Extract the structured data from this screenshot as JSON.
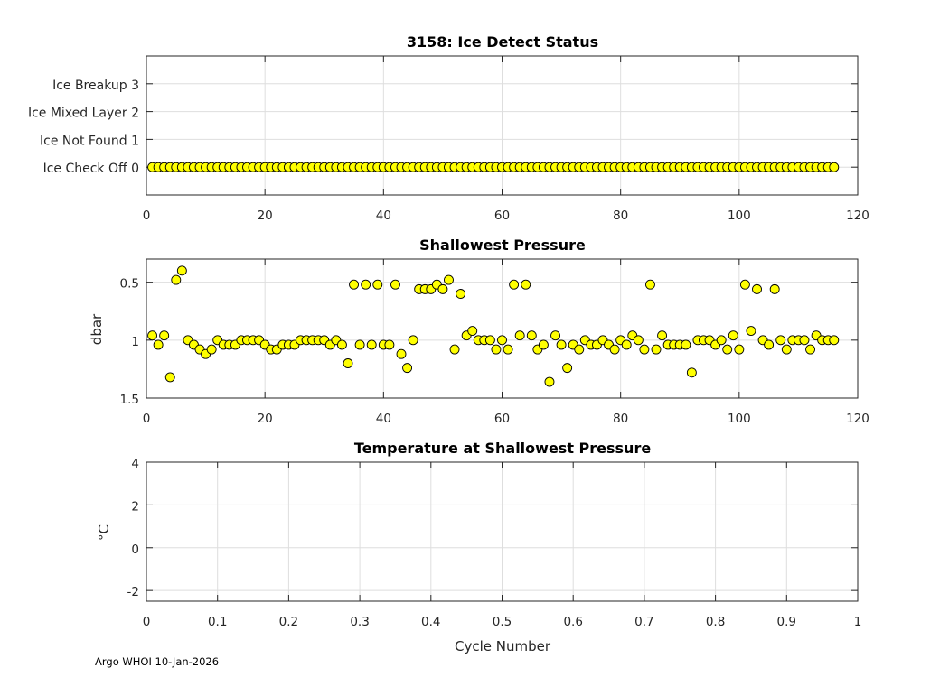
{
  "footer": "Argo WHOI 10-Jan-2026",
  "marker_face_color": "#ffff00",
  "marker_edge_color": "#000000",
  "chart_data": [
    {
      "type": "scatter",
      "title": "3158: Ice Detect Status",
      "xlabel": "",
      "ylabel": "",
      "xlim": [
        0,
        120
      ],
      "ylim": [
        -1,
        4
      ],
      "x_ticks": [
        0,
        20,
        40,
        60,
        80,
        100,
        120
      ],
      "x_tick_labels": [
        "0",
        "20",
        "40",
        "60",
        "80",
        "100",
        "120"
      ],
      "y_ticks": [
        0,
        1,
        2,
        3
      ],
      "y_tick_labels": [
        "Ice Check Off 0",
        "Ice Not Found 1",
        "Ice Mixed Layer 2",
        "Ice Breakup 3"
      ],
      "grid": true,
      "x_start": 1,
      "y_constant": 0,
      "count": 116
    },
    {
      "type": "scatter",
      "title": "Shallowest Pressure",
      "xlabel": "",
      "ylabel": "dbar",
      "xlim": [
        0,
        120
      ],
      "ylim": [
        0.3,
        1.5
      ],
      "y_reversed": true,
      "x_ticks": [
        0,
        20,
        40,
        60,
        80,
        100,
        120
      ],
      "x_tick_labels": [
        "0",
        "20",
        "40",
        "60",
        "80",
        "100",
        "120"
      ],
      "y_ticks": [
        0.5,
        1,
        1.5
      ],
      "y_tick_labels": [
        "0.5",
        "1",
        "1.5"
      ],
      "grid": true,
      "x": [
        1,
        2,
        3,
        4,
        5,
        6,
        7,
        8,
        9,
        10,
        11,
        12,
        13,
        14,
        15,
        16,
        17,
        18,
        19,
        20,
        21,
        22,
        23,
        24,
        25,
        26,
        27,
        28,
        29,
        30,
        31,
        32,
        33,
        34,
        35,
        36,
        37,
        38,
        39,
        40,
        41,
        42,
        43,
        44,
        45,
        46,
        47,
        48,
        49,
        50,
        51,
        52,
        53,
        54,
        55,
        56,
        57,
        58,
        59,
        60,
        61,
        62,
        63,
        64,
        65,
        66,
        67,
        68,
        69,
        70,
        71,
        72,
        73,
        74,
        75,
        76,
        77,
        78,
        79,
        80,
        81,
        82,
        83,
        84,
        85,
        86,
        87,
        88,
        89,
        90,
        91,
        92,
        93,
        94,
        95,
        96,
        97,
        98,
        99,
        100,
        101,
        102,
        103,
        104,
        105,
        106,
        107,
        108,
        109,
        110,
        111,
        112,
        113,
        114,
        115,
        116
      ],
      "y": [
        0.96,
        1.04,
        0.96,
        1.32,
        0.48,
        0.4,
        1.0,
        1.04,
        1.08,
        1.12,
        1.08,
        1.0,
        1.04,
        1.04,
        1.04,
        1.0,
        1.0,
        1.0,
        1.0,
        1.04,
        1.08,
        1.08,
        1.04,
        1.04,
        1.04,
        1.0,
        1.0,
        1.0,
        1.0,
        1.0,
        1.04,
        1.0,
        1.04,
        1.2,
        0.52,
        1.04,
        0.52,
        1.04,
        0.52,
        1.04,
        1.04,
        0.52,
        1.12,
        1.24,
        1.0,
        0.56,
        0.56,
        0.56,
        0.52,
        0.56,
        0.48,
        1.08,
        0.6,
        0.96,
        0.92,
        1.0,
        1.0,
        1.0,
        1.08,
        1.0,
        1.08,
        0.52,
        0.96,
        0.52,
        0.96,
        1.08,
        1.04,
        1.36,
        0.96,
        1.04,
        1.24,
        1.04,
        1.08,
        1.0,
        1.04,
        1.04,
        1.0,
        1.04,
        1.08,
        1.0,
        1.04,
        0.96,
        1.0,
        1.08,
        0.52,
        1.08,
        0.96,
        1.04,
        1.04,
        1.04,
        1.04,
        1.28,
        1.0,
        1.0,
        1.0,
        1.04,
        1.0,
        1.08,
        0.96,
        1.08,
        0.52,
        0.92,
        0.56,
        1.0,
        1.04,
        0.56,
        1.0,
        1.08,
        1.0,
        1.0,
        1.0,
        1.08,
        0.96,
        1.0,
        1.0,
        1.0
      ]
    },
    {
      "type": "scatter",
      "title": "Temperature at Shallowest Pressure",
      "xlabel": "Cycle Number",
      "ylabel": "°C",
      "xlim": [
        0,
        1
      ],
      "ylim": [
        -2.5,
        4
      ],
      "x_ticks": [
        0,
        0.1,
        0.2,
        0.3,
        0.4,
        0.5,
        0.6,
        0.7,
        0.8,
        0.9,
        1
      ],
      "x_tick_labels": [
        "0",
        "0.1",
        "0.2",
        "0.3",
        "0.4",
        "0.5",
        "0.6",
        "0.7",
        "0.8",
        "0.9",
        "1"
      ],
      "y_ticks": [
        -2,
        0,
        2,
        4
      ],
      "y_tick_labels": [
        "-2",
        "0",
        "2",
        "4"
      ],
      "grid": true,
      "x": [],
      "y": []
    }
  ]
}
